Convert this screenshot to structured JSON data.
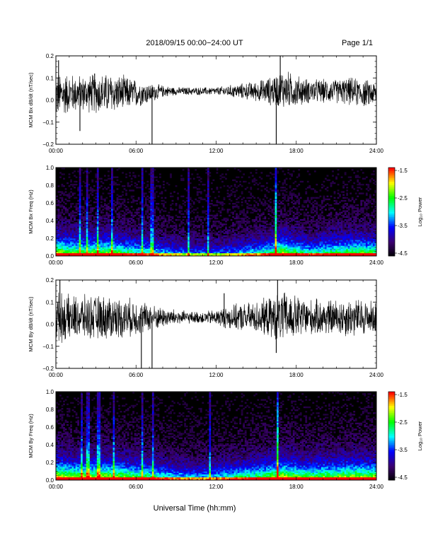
{
  "header": {
    "title": "2018/09/15  00:00−24:00 UT",
    "page": "Page 1/1"
  },
  "xaxis": {
    "label": "Universal Time (hh:mm)",
    "ticks": [
      "00:00",
      "06:00",
      "12:00",
      "18:00",
      "24:00"
    ],
    "range_hours": [
      0,
      24
    ]
  },
  "colors": {
    "trace": "#000000",
    "colormap": [
      "#000000",
      "#3c0070",
      "#0000ff",
      "#00ffff",
      "#00ff00",
      "#ffff00",
      "#ff0000"
    ]
  },
  "chart_data": [
    {
      "type": "line",
      "ylabel": "MCM Bx dB/dt (nT/sec)",
      "ylim": [
        -0.2,
        0.2
      ],
      "yticks": [
        "0.2",
        "0.1",
        "0.0",
        "−0.1",
        "−0.2"
      ],
      "x_hours": [
        0,
        1,
        2,
        3,
        4,
        5,
        6,
        7,
        8,
        9,
        10,
        11,
        12,
        13,
        14,
        15,
        16,
        17,
        18,
        19,
        20,
        21,
        22,
        23,
        24
      ],
      "baseline": [
        0.02,
        0.03,
        0.03,
        0.03,
        0.03,
        0.03,
        0.03,
        0.03,
        0.04,
        0.04,
        0.04,
        0.04,
        0.04,
        0.04,
        0.04,
        0.04,
        0.04,
        0.05,
        0.04,
        0.04,
        0.04,
        0.04,
        0.04,
        0.03,
        0.03
      ],
      "amplitude": [
        0.12,
        0.1,
        0.09,
        0.1,
        0.1,
        0.09,
        0.07,
        0.05,
        0.03,
        0.02,
        0.02,
        0.02,
        0.02,
        0.03,
        0.04,
        0.05,
        0.07,
        0.1,
        0.08,
        0.06,
        0.06,
        0.06,
        0.07,
        0.07,
        0.06
      ],
      "spikes": [
        [
          0.2,
          0.18
        ],
        [
          1.8,
          -0.14
        ],
        [
          2.9,
          0.12
        ],
        [
          7.2,
          -0.2
        ],
        [
          16.5,
          -0.2
        ],
        [
          16.8,
          0.2
        ]
      ]
    },
    {
      "type": "heatmap",
      "ylabel": "MCM Bx Freq (Hz)",
      "ylim": [
        0.0,
        1.0
      ],
      "yticks": [
        "1.0",
        "0.8",
        "0.6",
        "0.4",
        "0.2",
        "0.0"
      ],
      "colorbar": {
        "label": "Log₁₀ Power",
        "range": [
          -4.5,
          -1.5
        ],
        "ticks": [
          "-1.5",
          "-2.5",
          "-3.5",
          "-4.5"
        ]
      },
      "activity": [
        0.9,
        0.8,
        0.75,
        0.8,
        0.8,
        0.7,
        0.65,
        0.6,
        0.5,
        0.45,
        0.4,
        0.4,
        0.4,
        0.45,
        0.5,
        0.55,
        0.65,
        0.85,
        0.7,
        0.6,
        0.65,
        0.7,
        0.75,
        0.75,
        0.7
      ],
      "vertical_lines_hours": [
        1.8,
        2.3,
        3.1,
        4.2,
        6.5,
        7.2,
        9.9,
        11.4,
        16.5
      ]
    },
    {
      "type": "line",
      "ylabel": "MCM By dB/dt (nT/sec)",
      "ylim": [
        -0.2,
        0.2
      ],
      "yticks": [
        "0.2",
        "0.1",
        "0.0",
        "−0.1",
        "−0.2"
      ],
      "x_hours": [
        0,
        1,
        2,
        3,
        4,
        5,
        6,
        7,
        8,
        9,
        10,
        11,
        12,
        13,
        14,
        15,
        16,
        17,
        18,
        19,
        20,
        21,
        22,
        23,
        24
      ],
      "baseline": [
        0.03,
        0.03,
        0.03,
        0.03,
        0.03,
        0.03,
        0.03,
        0.03,
        0.03,
        0.03,
        0.03,
        0.03,
        0.03,
        0.03,
        0.03,
        0.03,
        0.03,
        0.03,
        0.03,
        0.03,
        0.03,
        0.03,
        0.03,
        0.03,
        0.03
      ],
      "amplitude": [
        0.13,
        0.11,
        0.11,
        0.11,
        0.11,
        0.1,
        0.09,
        0.07,
        0.05,
        0.04,
        0.03,
        0.03,
        0.04,
        0.06,
        0.07,
        0.08,
        0.1,
        0.13,
        0.11,
        0.09,
        0.09,
        0.09,
        0.1,
        0.09,
        0.08
      ],
      "spikes": [
        [
          0.3,
          0.2
        ],
        [
          6.4,
          -0.2
        ],
        [
          7.2,
          -0.2
        ],
        [
          12.6,
          0.14
        ],
        [
          16.6,
          0.2
        ],
        [
          16.5,
          -0.13
        ]
      ]
    },
    {
      "type": "heatmap",
      "ylabel": "MCM By Freq (Hz)",
      "ylim": [
        0.0,
        1.0
      ],
      "yticks": [
        "1.0",
        "0.8",
        "0.6",
        "0.4",
        "0.2",
        "0.0"
      ],
      "colorbar": {
        "label": "Log₁₀ Power",
        "range": [
          -4.5,
          -1.5
        ],
        "ticks": [
          "-1.5",
          "-2.5",
          "-3.5",
          "-4.5"
        ]
      },
      "activity": [
        0.95,
        0.85,
        0.85,
        0.85,
        0.85,
        0.8,
        0.75,
        0.7,
        0.6,
        0.55,
        0.5,
        0.5,
        0.55,
        0.6,
        0.65,
        0.7,
        0.8,
        0.9,
        0.8,
        0.75,
        0.8,
        0.8,
        0.85,
        0.85,
        0.8
      ],
      "vertical_lines_hours": [
        1.9,
        2.4,
        3.2,
        4.3,
        6.5,
        7.3,
        11.5,
        16.6
      ]
    }
  ]
}
